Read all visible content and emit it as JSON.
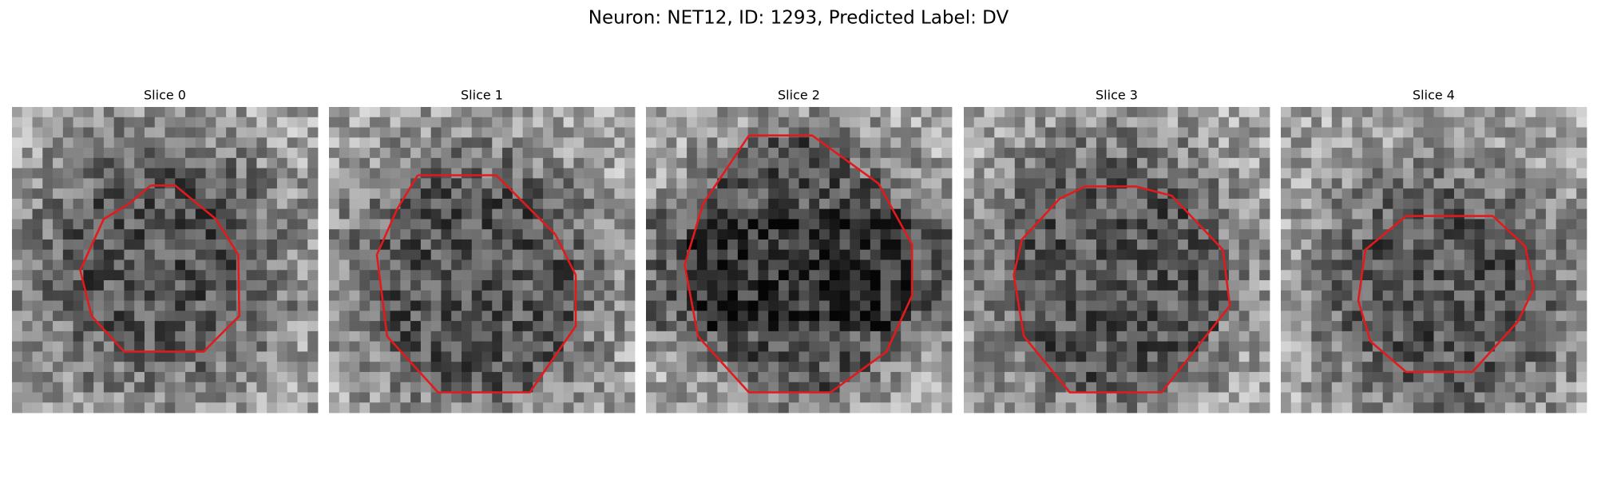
{
  "title": "Neuron: NET12, ID: 1293, Predicted Label: DV",
  "panels": [
    {
      "title": "Slice 0"
    },
    {
      "title": "Slice 1"
    },
    {
      "title": "Slice 2"
    },
    {
      "title": "Slice 3"
    },
    {
      "title": "Slice 4"
    }
  ]
}
